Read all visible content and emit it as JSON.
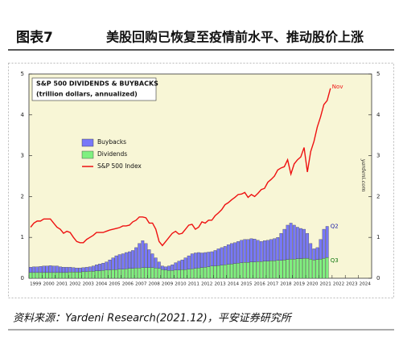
{
  "header": {
    "figure_label": "图表7",
    "figure_title": "美股回购已恢复至疫情前水平、推动股价上涨"
  },
  "source": "资料来源：Yardeni Research(2021.12)，平安证券研究所",
  "chart_data": {
    "type": "bar",
    "title": "S&P 500 DIVIDENDS & BUYBACKS",
    "subtitle": "(trillion dollars, annualized)",
    "watermark": "yardeni.com",
    "annotations": [
      "Nov",
      "Q2",
      "Q3"
    ],
    "xlim": [
      1999,
      2025
    ],
    "xticks": [
      1999,
      2000,
      2001,
      2002,
      2003,
      2004,
      2005,
      2006,
      2007,
      2008,
      2009,
      2010,
      2011,
      2012,
      2013,
      2014,
      2015,
      2016,
      2017,
      2018,
      2019,
      2020,
      2021,
      2022,
      2023,
      2024
    ],
    "ylim": [
      0,
      5
    ],
    "yticks": [
      0,
      1,
      2,
      3,
      4,
      5
    ],
    "y2lim": [
      0,
      5
    ],
    "y2ticks": [
      0,
      1,
      2,
      3,
      4,
      5
    ],
    "grid": false,
    "legend": "upper-left",
    "x": [
      1999.125,
      1999.375,
      1999.625,
      1999.875,
      2000.125,
      2000.375,
      2000.625,
      2000.875,
      2001.125,
      2001.375,
      2001.625,
      2001.875,
      2002.125,
      2002.375,
      2002.625,
      2002.875,
      2003.125,
      2003.375,
      2003.625,
      2003.875,
      2004.125,
      2004.375,
      2004.625,
      2004.875,
      2005.125,
      2005.375,
      2005.625,
      2005.875,
      2006.125,
      2006.375,
      2006.625,
      2006.875,
      2007.125,
      2007.375,
      2007.625,
      2007.875,
      2008.125,
      2008.375,
      2008.625,
      2008.875,
      2009.125,
      2009.375,
      2009.625,
      2009.875,
      2010.125,
      2010.375,
      2010.625,
      2010.875,
      2011.125,
      2011.375,
      2011.625,
      2011.875,
      2012.125,
      2012.375,
      2012.625,
      2012.875,
      2013.125,
      2013.375,
      2013.625,
      2013.875,
      2014.125,
      2014.375,
      2014.625,
      2014.875,
      2015.125,
      2015.375,
      2015.625,
      2015.875,
      2016.125,
      2016.375,
      2016.625,
      2016.875,
      2017.125,
      2017.375,
      2017.625,
      2017.875,
      2018.125,
      2018.375,
      2018.625,
      2018.875,
      2019.125,
      2019.375,
      2019.625,
      2019.875,
      2020.125,
      2020.375,
      2020.625,
      2020.875,
      2021.125,
      2021.375,
      2021.625
    ],
    "series": [
      {
        "name": "Buybacks",
        "color": "#7878f8",
        "type": "bar",
        "values": [
          0.13,
          0.14,
          0.14,
          0.15,
          0.16,
          0.16,
          0.17,
          0.16,
          0.16,
          0.14,
          0.13,
          0.13,
          0.12,
          0.11,
          0.1,
          0.1,
          0.1,
          0.11,
          0.11,
          0.13,
          0.15,
          0.17,
          0.18,
          0.2,
          0.25,
          0.29,
          0.34,
          0.36,
          0.38,
          0.4,
          0.41,
          0.44,
          0.5,
          0.6,
          0.66,
          0.59,
          0.44,
          0.34,
          0.25,
          0.16,
          0.09,
          0.08,
          0.11,
          0.14,
          0.18,
          0.22,
          0.24,
          0.29,
          0.33,
          0.37,
          0.38,
          0.38,
          0.36,
          0.36,
          0.36,
          0.35,
          0.38,
          0.41,
          0.43,
          0.45,
          0.48,
          0.5,
          0.51,
          0.53,
          0.55,
          0.56,
          0.56,
          0.57,
          0.56,
          0.52,
          0.49,
          0.5,
          0.51,
          0.52,
          0.54,
          0.56,
          0.66,
          0.75,
          0.84,
          0.88,
          0.83,
          0.77,
          0.74,
          0.71,
          0.61,
          0.38,
          0.27,
          0.29,
          0.48,
          0.71,
          0.76
        ]
      },
      {
        "name": "Dividends",
        "color": "#80f080",
        "type": "bar",
        "values": [
          0.14,
          0.14,
          0.14,
          0.14,
          0.14,
          0.14,
          0.14,
          0.14,
          0.14,
          0.14,
          0.14,
          0.14,
          0.15,
          0.15,
          0.15,
          0.15,
          0.16,
          0.16,
          0.17,
          0.17,
          0.18,
          0.18,
          0.19,
          0.2,
          0.2,
          0.21,
          0.21,
          0.22,
          0.22,
          0.23,
          0.24,
          0.24,
          0.25,
          0.25,
          0.26,
          0.26,
          0.26,
          0.26,
          0.25,
          0.24,
          0.21,
          0.2,
          0.19,
          0.19,
          0.2,
          0.2,
          0.21,
          0.21,
          0.22,
          0.23,
          0.24,
          0.25,
          0.26,
          0.27,
          0.28,
          0.3,
          0.3,
          0.31,
          0.32,
          0.33,
          0.34,
          0.35,
          0.36,
          0.37,
          0.38,
          0.39,
          0.39,
          0.4,
          0.4,
          0.41,
          0.41,
          0.42,
          0.42,
          0.43,
          0.43,
          0.44,
          0.44,
          0.45,
          0.46,
          0.47,
          0.47,
          0.48,
          0.48,
          0.49,
          0.49,
          0.47,
          0.45,
          0.46,
          0.47,
          0.49,
          0.51
        ]
      },
      {
        "name": "S&P 500 Index",
        "color": "#ee1111",
        "type": "line",
        "axis": "y2",
        "x": [
          1999.125,
          1999.375,
          1999.625,
          1999.875,
          2000.125,
          2000.375,
          2000.625,
          2000.875,
          2001.125,
          2001.375,
          2001.625,
          2001.875,
          2002.125,
          2002.375,
          2002.625,
          2002.875,
          2003.125,
          2003.375,
          2003.625,
          2003.875,
          2004.125,
          2004.375,
          2004.625,
          2004.875,
          2005.125,
          2005.375,
          2005.625,
          2005.875,
          2006.125,
          2006.375,
          2006.625,
          2006.875,
          2007.125,
          2007.375,
          2007.625,
          2007.875,
          2008.125,
          2008.375,
          2008.625,
          2008.875,
          2009.125,
          2009.375,
          2009.625,
          2009.875,
          2010.125,
          2010.375,
          2010.625,
          2010.875,
          2011.125,
          2011.375,
          2011.625,
          2011.875,
          2012.125,
          2012.375,
          2012.625,
          2012.875,
          2013.125,
          2013.375,
          2013.625,
          2013.875,
          2014.125,
          2014.375,
          2014.625,
          2014.875,
          2015.125,
          2015.375,
          2015.625,
          2015.875,
          2016.125,
          2016.375,
          2016.625,
          2016.875,
          2017.125,
          2017.375,
          2017.625,
          2017.875,
          2018.125,
          2018.375,
          2018.625,
          2018.875,
          2019.125,
          2019.375,
          2019.625,
          2019.875,
          2020.125,
          2020.375,
          2020.625,
          2020.875,
          2021.125,
          2021.375,
          2021.625,
          2021.875
        ],
        "values": [
          1.25,
          1.35,
          1.4,
          1.4,
          1.45,
          1.45,
          1.45,
          1.35,
          1.25,
          1.2,
          1.1,
          1.15,
          1.12,
          1.0,
          0.9,
          0.87,
          0.87,
          0.95,
          1.0,
          1.05,
          1.12,
          1.12,
          1.12,
          1.15,
          1.18,
          1.2,
          1.22,
          1.24,
          1.28,
          1.28,
          1.3,
          1.38,
          1.42,
          1.5,
          1.5,
          1.48,
          1.35,
          1.35,
          1.2,
          0.9,
          0.8,
          0.9,
          1.0,
          1.1,
          1.15,
          1.08,
          1.1,
          1.2,
          1.3,
          1.32,
          1.2,
          1.25,
          1.38,
          1.35,
          1.42,
          1.42,
          1.53,
          1.6,
          1.68,
          1.8,
          1.85,
          1.92,
          1.98,
          2.05,
          2.06,
          2.1,
          1.98,
          2.05,
          2.0,
          2.08,
          2.17,
          2.2,
          2.35,
          2.42,
          2.5,
          2.65,
          2.7,
          2.73,
          2.9,
          2.55,
          2.8,
          2.9,
          2.97,
          3.2,
          2.6,
          3.1,
          3.35,
          3.7,
          3.95,
          4.25,
          4.35,
          4.65
        ]
      }
    ]
  }
}
